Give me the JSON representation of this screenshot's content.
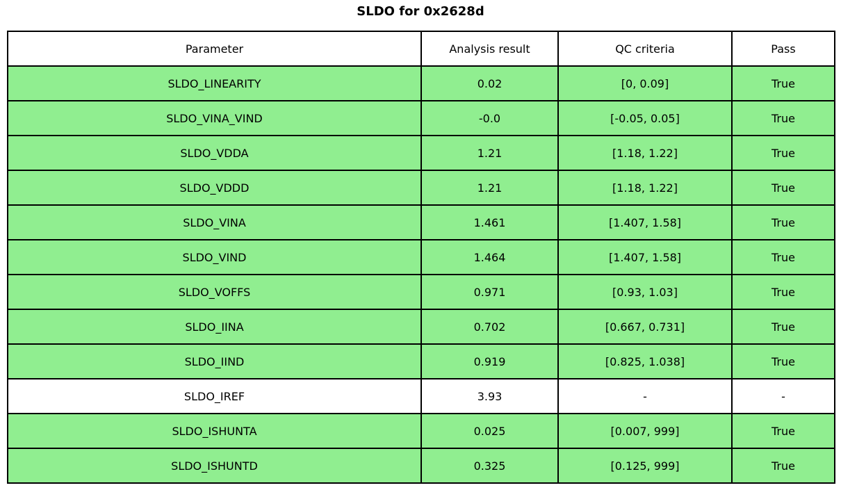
{
  "title": "SLDO for 0x2628d",
  "colors": {
    "pass_green": "#90EE90",
    "neutral_row": "#FFFFFF",
    "border": "#000000",
    "text": "#000000",
    "background": "#FFFFFF"
  },
  "chart_data": {
    "type": "table",
    "title": "SLDO for 0x2628d",
    "columns": [
      "Parameter",
      "Analysis result",
      "QC criteria",
      "Pass"
    ],
    "rows": [
      {
        "parameter": "SLDO_LINEARITY",
        "result": "0.02",
        "criteria": "[0, 0.09]",
        "pass": "True",
        "highlight": true
      },
      {
        "parameter": "SLDO_VINA_VIND",
        "result": "-0.0",
        "criteria": "[-0.05, 0.05]",
        "pass": "True",
        "highlight": true
      },
      {
        "parameter": "SLDO_VDDA",
        "result": "1.21",
        "criteria": "[1.18, 1.22]",
        "pass": "True",
        "highlight": true
      },
      {
        "parameter": "SLDO_VDDD",
        "result": "1.21",
        "criteria": "[1.18, 1.22]",
        "pass": "True",
        "highlight": true
      },
      {
        "parameter": "SLDO_VINA",
        "result": "1.461",
        "criteria": "[1.407, 1.58]",
        "pass": "True",
        "highlight": true
      },
      {
        "parameter": "SLDO_VIND",
        "result": "1.464",
        "criteria": "[1.407, 1.58]",
        "pass": "True",
        "highlight": true
      },
      {
        "parameter": "SLDO_VOFFS",
        "result": "0.971",
        "criteria": "[0.93, 1.03]",
        "pass": "True",
        "highlight": true
      },
      {
        "parameter": "SLDO_IINA",
        "result": "0.702",
        "criteria": "[0.667, 0.731]",
        "pass": "True",
        "highlight": true
      },
      {
        "parameter": "SLDO_IIND",
        "result": "0.919",
        "criteria": "[0.825, 1.038]",
        "pass": "True",
        "highlight": true
      },
      {
        "parameter": "SLDO_IREF",
        "result": "3.93",
        "criteria": "-",
        "pass": "-",
        "highlight": false
      },
      {
        "parameter": "SLDO_ISHUNTA",
        "result": "0.025",
        "criteria": "[0.007, 999]",
        "pass": "True",
        "highlight": true
      },
      {
        "parameter": "SLDO_ISHUNTD",
        "result": "0.325",
        "criteria": "[0.125, 999]",
        "pass": "True",
        "highlight": true
      }
    ]
  }
}
